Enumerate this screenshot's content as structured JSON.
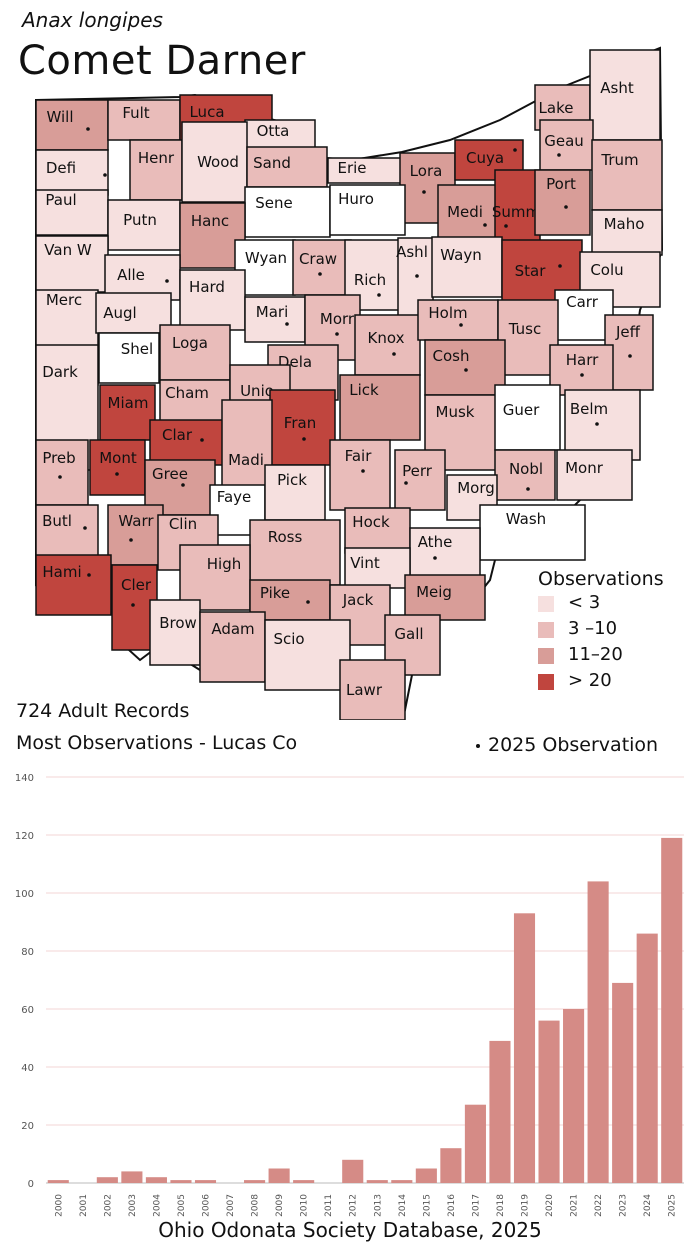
{
  "header": {
    "latin_name": "Anax longipes",
    "common_name": "Comet Darner"
  },
  "legend": {
    "title": "Observations",
    "bins": [
      {
        "label": "< 3",
        "color": "#f6e0df"
      },
      {
        "label": "3 –10",
        "color": "#e9bcba"
      },
      {
        "label": "11–20",
        "color": "#d89d98"
      },
      {
        "label": "> 20",
        "color": "#c0453e"
      }
    ]
  },
  "stats": {
    "records": "724 Adult Records",
    "most": "Most Observations - Lucas Co",
    "obs_key": "2025  Observation"
  },
  "map": {
    "counties": [
      {
        "name": "Will",
        "bin": 2,
        "dot": true
      },
      {
        "name": "Fult",
        "bin": 1,
        "dot": false
      },
      {
        "name": "Luca",
        "bin": 3,
        "dot": true
      },
      {
        "name": "Otta",
        "bin": 0,
        "dot": false
      },
      {
        "name": "Lake",
        "bin": 1,
        "dot": false
      },
      {
        "name": "Asht",
        "bin": 0,
        "dot": false
      },
      {
        "name": "Defi",
        "bin": 0,
        "dot": true
      },
      {
        "name": "Henr",
        "bin": 1,
        "dot": false
      },
      {
        "name": "Wood",
        "bin": 0,
        "dot": false
      },
      {
        "name": "Sand",
        "bin": 1,
        "dot": false
      },
      {
        "name": "Erie",
        "bin": 0,
        "dot": false
      },
      {
        "name": "Lora",
        "bin": 2,
        "dot": true
      },
      {
        "name": "Cuya",
        "bin": 3,
        "dot": true
      },
      {
        "name": "Geau",
        "bin": 1,
        "dot": true
      },
      {
        "name": "Trum",
        "bin": 1,
        "dot": false
      },
      {
        "name": "Paul",
        "bin": 0,
        "dot": false
      },
      {
        "name": "Putn",
        "bin": 0,
        "dot": false
      },
      {
        "name": "Sene",
        "bin": -1,
        "dot": false
      },
      {
        "name": "Huro",
        "bin": -1,
        "dot": false
      },
      {
        "name": "Medi",
        "bin": 2,
        "dot": true
      },
      {
        "name": "Summ",
        "bin": 3,
        "dot": true
      },
      {
        "name": "Port",
        "bin": 2,
        "dot": true
      },
      {
        "name": "Maho",
        "bin": 0,
        "dot": false
      },
      {
        "name": "Hanc",
        "bin": 2,
        "dot": false
      },
      {
        "name": "Van W",
        "bin": 0,
        "dot": false
      },
      {
        "name": "Alle",
        "bin": 0,
        "dot": true
      },
      {
        "name": "Wyan",
        "bin": -1,
        "dot": false
      },
      {
        "name": "Craw",
        "bin": 1,
        "dot": true
      },
      {
        "name": "Rich",
        "bin": 0,
        "dot": true
      },
      {
        "name": "Ashl",
        "bin": 0,
        "dot": true
      },
      {
        "name": "Wayn",
        "bin": 0,
        "dot": false
      },
      {
        "name": "Star",
        "bin": 3,
        "dot": true
      },
      {
        "name": "Colu",
        "bin": 0,
        "dot": false
      },
      {
        "name": "Hard",
        "bin": 0,
        "dot": false
      },
      {
        "name": "Merc",
        "bin": 0,
        "dot": false
      },
      {
        "name": "Augl",
        "bin": 0,
        "dot": false
      },
      {
        "name": "Mari",
        "bin": 0,
        "dot": true
      },
      {
        "name": "Morr",
        "bin": 1,
        "dot": true
      },
      {
        "name": "Knox",
        "bin": 1,
        "dot": true
      },
      {
        "name": "Holm",
        "bin": 1,
        "dot": true
      },
      {
        "name": "Carr",
        "bin": -1,
        "dot": false
      },
      {
        "name": "Tusc",
        "bin": 1,
        "dot": false
      },
      {
        "name": "Jeff",
        "bin": 1,
        "dot": true
      },
      {
        "name": "Shel",
        "bin": -1,
        "dot": false
      },
      {
        "name": "Loga",
        "bin": 1,
        "dot": false
      },
      {
        "name": "Dela",
        "bin": 1,
        "dot": false
      },
      {
        "name": "Cosh",
        "bin": 2,
        "dot": true
      },
      {
        "name": "Harr",
        "bin": 1,
        "dot": true
      },
      {
        "name": "Dark",
        "bin": 0,
        "dot": false
      },
      {
        "name": "Cham",
        "bin": 1,
        "dot": false
      },
      {
        "name": "Unio",
        "bin": 1,
        "dot": false
      },
      {
        "name": "Lick",
        "bin": 2,
        "dot": false
      },
      {
        "name": "Miam",
        "bin": 3,
        "dot": false
      },
      {
        "name": "Musk",
        "bin": 1,
        "dot": false
      },
      {
        "name": "Guer",
        "bin": -1,
        "dot": false
      },
      {
        "name": "Belm",
        "bin": 0,
        "dot": true
      },
      {
        "name": "Clar",
        "bin": 3,
        "dot": true
      },
      {
        "name": "Fran",
        "bin": 3,
        "dot": true
      },
      {
        "name": "Madi",
        "bin": 1,
        "dot": false
      },
      {
        "name": "Fair",
        "bin": 1,
        "dot": true
      },
      {
        "name": "Perr",
        "bin": 1,
        "dot": true
      },
      {
        "name": "Nobl",
        "bin": 1,
        "dot": true
      },
      {
        "name": "Monr",
        "bin": 0,
        "dot": false
      },
      {
        "name": "Preb",
        "bin": 1,
        "dot": true
      },
      {
        "name": "Mont",
        "bin": 3,
        "dot": true
      },
      {
        "name": "Gree",
        "bin": 2,
        "dot": true
      },
      {
        "name": "Faye",
        "bin": -1,
        "dot": false
      },
      {
        "name": "Pick",
        "bin": 0,
        "dot": false
      },
      {
        "name": "Morg",
        "bin": 0,
        "dot": false
      },
      {
        "name": "Wash",
        "bin": -1,
        "dot": false
      },
      {
        "name": "Butl",
        "bin": 1,
        "dot": true
      },
      {
        "name": "Warr",
        "bin": 2,
        "dot": true
      },
      {
        "name": "Clin",
        "bin": 1,
        "dot": false
      },
      {
        "name": "Hock",
        "bin": 1,
        "dot": false
      },
      {
        "name": "Athe",
        "bin": 0,
        "dot": true
      },
      {
        "name": "Ross",
        "bin": 1,
        "dot": false
      },
      {
        "name": "Vint",
        "bin": 0,
        "dot": false
      },
      {
        "name": "Hami",
        "bin": 3,
        "dot": true
      },
      {
        "name": "Cler",
        "bin": 3,
        "dot": true
      },
      {
        "name": "High",
        "bin": 1,
        "dot": false
      },
      {
        "name": "Pike",
        "bin": 2,
        "dot": true
      },
      {
        "name": "Jack",
        "bin": 1,
        "dot": false
      },
      {
        "name": "Meig",
        "bin": 2,
        "dot": false
      },
      {
        "name": "Brow",
        "bin": 0,
        "dot": false
      },
      {
        "name": "Adam",
        "bin": 1,
        "dot": false
      },
      {
        "name": "Scio",
        "bin": 0,
        "dot": false
      },
      {
        "name": "Gall",
        "bin": 1,
        "dot": false
      },
      {
        "name": "Lawr",
        "bin": 1,
        "dot": false
      }
    ]
  },
  "chart_data": {
    "type": "bar",
    "categories": [
      "2000",
      "2001",
      "2002",
      "2003",
      "2004",
      "2005",
      "2006",
      "2007",
      "2008",
      "2009",
      "2010",
      "2011",
      "2012",
      "2013",
      "2014",
      "2015",
      "2016",
      "2017",
      "2018",
      "2019",
      "2020",
      "2021",
      "2022",
      "2023",
      "2024",
      "2025"
    ],
    "values": [
      1,
      0,
      2,
      4,
      2,
      1,
      1,
      0,
      1,
      5,
      1,
      0,
      8,
      1,
      1,
      5,
      12,
      27,
      49,
      93,
      56,
      60,
      104,
      69,
      86,
      119
    ],
    "ylim": [
      0,
      140
    ],
    "yticks": [
      "0",
      "20",
      "40",
      "60",
      "80",
      "100",
      "120",
      "140"
    ],
    "grid": true,
    "bar_color": "#d58b86",
    "title": "",
    "xlabel": "",
    "ylabel": ""
  },
  "footer": {
    "source": "Ohio Odonata Society Database, 2025"
  }
}
